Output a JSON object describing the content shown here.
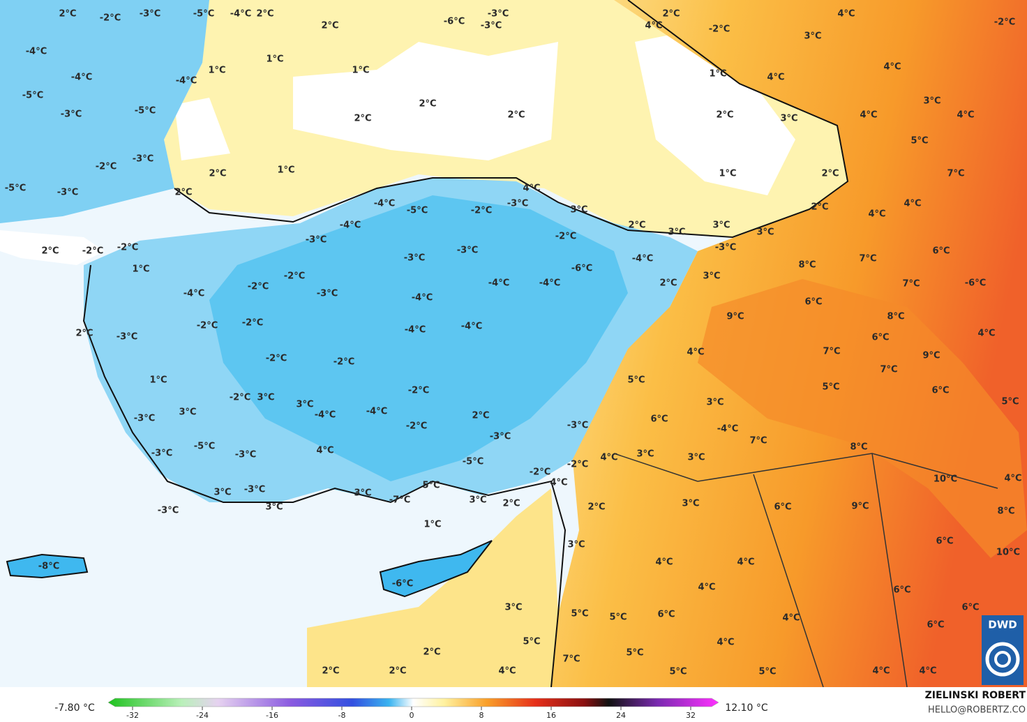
{
  "map": {
    "temperature_labels": [
      "2°C",
      "-2°C",
      "-3°C",
      "-5°C",
      "-4°C",
      "2°C",
      "2°C",
      "1°C",
      "1°C",
      "1°C",
      "2°C",
      "2°C",
      "2°C",
      "-6°C",
      "-3°C",
      "-3°C",
      "2°C",
      "4°C",
      "-2°C",
      "3°C",
      "4°C",
      "-2°C",
      "4°C",
      "1°C",
      "4°C",
      "2°C",
      "3°C",
      "4°C",
      "3°C",
      "4°C",
      "5°C",
      "7°C",
      "2°C",
      "1°C",
      "2°C",
      "4°C",
      "4°C",
      "6°C",
      "7°C",
      "8°C",
      "-4°C",
      "-4°C",
      "-4°C",
      "-5°C",
      "-3°C",
      "-5°C",
      "-2°C",
      "-3°C",
      "-5°C",
      "-3°C",
      "2°C",
      "1°C",
      "2°C",
      "4°C",
      "3°C",
      "-4°C",
      "-5°C",
      "-2°C",
      "-3°C",
      "-4°C",
      "2°C",
      "3°C",
      "3°C",
      "3°C",
      "-3°C",
      "-2°C",
      "-3°C",
      "-3°C",
      "-3°C",
      "-4°C",
      "-6°C",
      "2°C",
      "-2°C",
      "-2°C",
      "1°C",
      "-2°C",
      "-2°C",
      "-4°C",
      "-3°C",
      "-4°C",
      "-4°C",
      "2°C",
      "3°C",
      "7°C",
      "-6°C",
      "6°C",
      "-4°C",
      "-4°C",
      "9°C",
      "8°C",
      "-2°C",
      "-2°C",
      "-4°C",
      "2°C",
      "-3°C",
      "6°C",
      "4°C",
      "4°C",
      "7°C",
      "9°C",
      "-2°C",
      "-2°C",
      "7°C",
      "1°C",
      "5°C",
      "-2°C",
      "5°C",
      "6°C",
      "5°C",
      "-2°C",
      "3°C",
      "3°C",
      "3°C",
      "-3°C",
      "3°C",
      "-4°C",
      "-4°C",
      "2°C",
      "6°C",
      "-2°C",
      "-3°C",
      "-4°C",
      "7°C",
      "-3°C",
      "-5°C",
      "4°C",
      "8°C",
      "-3°C",
      "-3°C",
      "3°C",
      "4°C",
      "3°C",
      "-5°C",
      "-2°C",
      "-2°C",
      "4°C",
      "10°C",
      "4°C",
      "5°C",
      "-3°C",
      "3°C",
      "3°C",
      "3°C",
      "2°C",
      "2°C",
      "3°C",
      "6°C",
      "9°C",
      "8°C",
      "-7°C",
      "3°C",
      "-3°C",
      "1°C",
      "6°C",
      "3°C",
      "10°C",
      "4°C",
      "4°C",
      "-8°C",
      "-6°C",
      "4°C",
      "6°C",
      "3°C",
      "6°C",
      "5°C",
      "5°C",
      "6°C",
      "4°C",
      "6°C",
      "4°C",
      "5°C",
      "5°C",
      "2°C",
      "7°C",
      "2°C",
      "2°C",
      "4°C",
      "5°C",
      "5°C",
      "4°C",
      "4°C"
    ],
    "legend": {
      "min_label": "-7.80 °C",
      "max_label": "12.10 °C",
      "ticks": [
        -32,
        -24,
        -16,
        -8,
        0,
        8,
        16,
        24,
        32
      ]
    },
    "credit": {
      "author": "ZIELINSKI ROBERT",
      "contact": "HELLO@ROBERTZ.CO",
      "logo": "DWD"
    }
  }
}
